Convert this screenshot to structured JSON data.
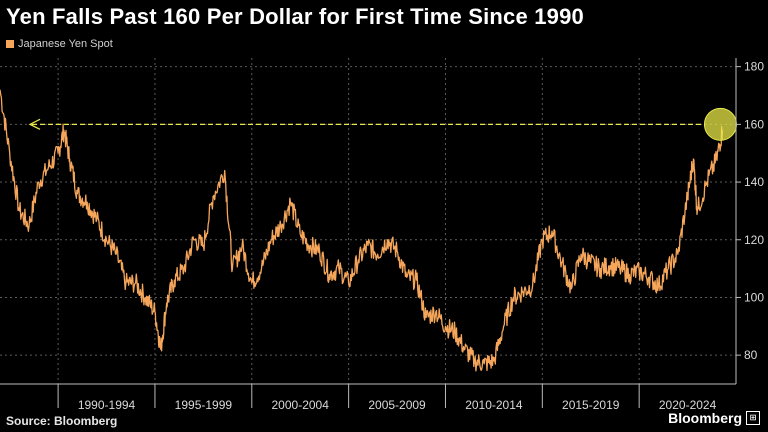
{
  "title": "Yen Falls Past 160 Per Dollar for First Time Since 1990",
  "legend": {
    "label": "Japanese Yen Spot",
    "color": "#f5a65b"
  },
  "footer": {
    "source": "Source: Bloomberg",
    "brand": "Bloomberg"
  },
  "colors": {
    "background": "#000000",
    "series": "#f5a65b",
    "annotation": "#e8e84a",
    "grid": "#5a5a5a"
  },
  "chart_data": {
    "type": "line",
    "series": [
      {
        "name": "Japanese Yen Spot",
        "x": [
          1987.0,
          1987.5,
          1988.0,
          1988.5,
          1989.0,
          1989.5,
          1990.0,
          1990.3,
          1990.6,
          1991.0,
          1991.5,
          1992.0,
          1992.5,
          1993.0,
          1993.5,
          1994.0,
          1994.5,
          1995.0,
          1995.3,
          1995.6,
          1996.0,
          1996.5,
          1997.0,
          1997.5,
          1998.0,
          1998.6,
          1999.0,
          1999.5,
          2000.0,
          2000.5,
          2001.0,
          2001.5,
          2002.0,
          2002.5,
          2003.0,
          2003.5,
          2004.0,
          2004.5,
          2005.0,
          2005.5,
          2006.0,
          2006.5,
          2007.0,
          2007.5,
          2008.0,
          2008.5,
          2009.0,
          2009.5,
          2010.0,
          2010.5,
          2011.0,
          2011.5,
          2012.0,
          2012.5,
          2013.0,
          2013.5,
          2014.0,
          2014.5,
          2015.0,
          2015.5,
          2016.0,
          2016.5,
          2017.0,
          2017.5,
          2018.0,
          2018.5,
          2019.0,
          2019.5,
          2020.0,
          2020.5,
          2021.0,
          2021.5,
          2022.0,
          2022.5,
          2022.8,
          2023.0,
          2023.5,
          2024.0,
          2024.3
        ],
        "values": [
          172,
          150,
          130,
          125,
          140,
          145,
          150,
          158,
          148,
          136,
          133,
          127,
          120,
          115,
          105,
          105,
          100,
          95,
          82,
          98,
          106,
          110,
          120,
          118,
          135,
          144,
          110,
          118,
          105,
          110,
          120,
          125,
          133,
          122,
          118,
          116,
          108,
          110,
          105,
          113,
          118,
          115,
          120,
          116,
          107,
          106,
          93,
          95,
          90,
          88,
          82,
          78,
          77,
          78,
          90,
          100,
          102,
          104,
          120,
          123,
          112,
          103,
          115,
          112,
          110,
          111,
          110,
          108,
          109,
          107,
          104,
          110,
          115,
          135,
          148,
          130,
          140,
          148,
          158
        ]
      }
    ],
    "xlabel": "",
    "ylabel": "",
    "x_categories": [
      "1990-1994",
      "1995-1999",
      "2000-2004",
      "2005-2009",
      "2010-2014",
      "2015-2019",
      "2020-2024"
    ],
    "yticks": [
      80,
      100,
      120,
      140,
      160,
      180
    ],
    "ylim": [
      70,
      183
    ],
    "xlim": [
      1987.0,
      2025.0
    ],
    "grid": true,
    "y_axis_side": "right",
    "annotation": {
      "level": 160,
      "type": "dashed-arrow-line-with-circle"
    }
  }
}
